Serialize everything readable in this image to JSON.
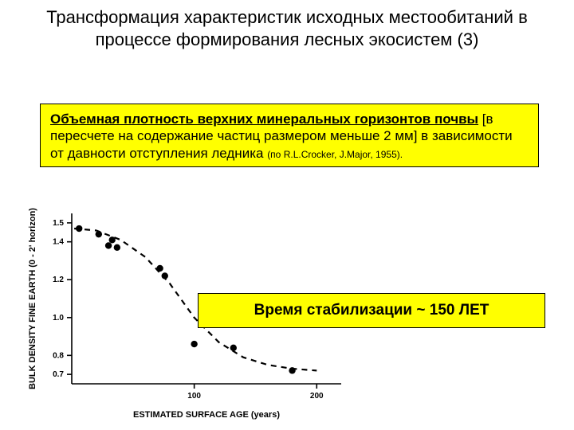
{
  "title": "Трансформация характеристик исходных местообитаний в процессе формирования лесных экосистем (3)",
  "box1": {
    "lead": "Объемная плотность верхних минеральных горизонтов почвы",
    "rest": " [в пересчете на содержание частиц размером меньше 2 мм] в зависимости от давности отступления ледника ",
    "cite": "(по R.L.Crocker, J.Major, 1955)."
  },
  "box2": "Время стабилизации ~ 150 ЛЕТ",
  "chart": {
    "type": "scatter+curve",
    "xlabel": "ESTIMATED   SURFACE   AGE   (years)",
    "ylabel": "BULK DENSITY FINE EARTH (0 - 2' horizon)",
    "background_color": "#ffffff",
    "axis_color": "#000000",
    "curve_color": "#000000",
    "marker_color": "#000000",
    "marker_radius": 4.2,
    "curve_width": 2.2,
    "dash": "7,6",
    "axis_width": 1.6,
    "tick_len": 6,
    "label_fontsize": 11,
    "tick_fontsize": 10,
    "xlim": [
      0,
      220
    ],
    "ylim": [
      0.65,
      1.55
    ],
    "xticks": [
      100,
      200
    ],
    "yticks": [
      0.7,
      0.8,
      1.0,
      1.2,
      1.4,
      1.5
    ],
    "points": [
      {
        "x": 6,
        "y": 1.47
      },
      {
        "x": 22,
        "y": 1.44
      },
      {
        "x": 30,
        "y": 1.38
      },
      {
        "x": 33,
        "y": 1.41
      },
      {
        "x": 37,
        "y": 1.37
      },
      {
        "x": 72,
        "y": 1.26
      },
      {
        "x": 76,
        "y": 1.22
      },
      {
        "x": 100,
        "y": 0.86
      },
      {
        "x": 132,
        "y": 0.84
      },
      {
        "x": 180,
        "y": 0.72
      }
    ],
    "curve": [
      {
        "x": 2,
        "y": 1.47
      },
      {
        "x": 20,
        "y": 1.46
      },
      {
        "x": 40,
        "y": 1.41
      },
      {
        "x": 60,
        "y": 1.32
      },
      {
        "x": 80,
        "y": 1.18
      },
      {
        "x": 100,
        "y": 1.0
      },
      {
        "x": 120,
        "y": 0.87
      },
      {
        "x": 140,
        "y": 0.79
      },
      {
        "x": 160,
        "y": 0.75
      },
      {
        "x": 180,
        "y": 0.73
      },
      {
        "x": 200,
        "y": 0.72
      }
    ]
  }
}
